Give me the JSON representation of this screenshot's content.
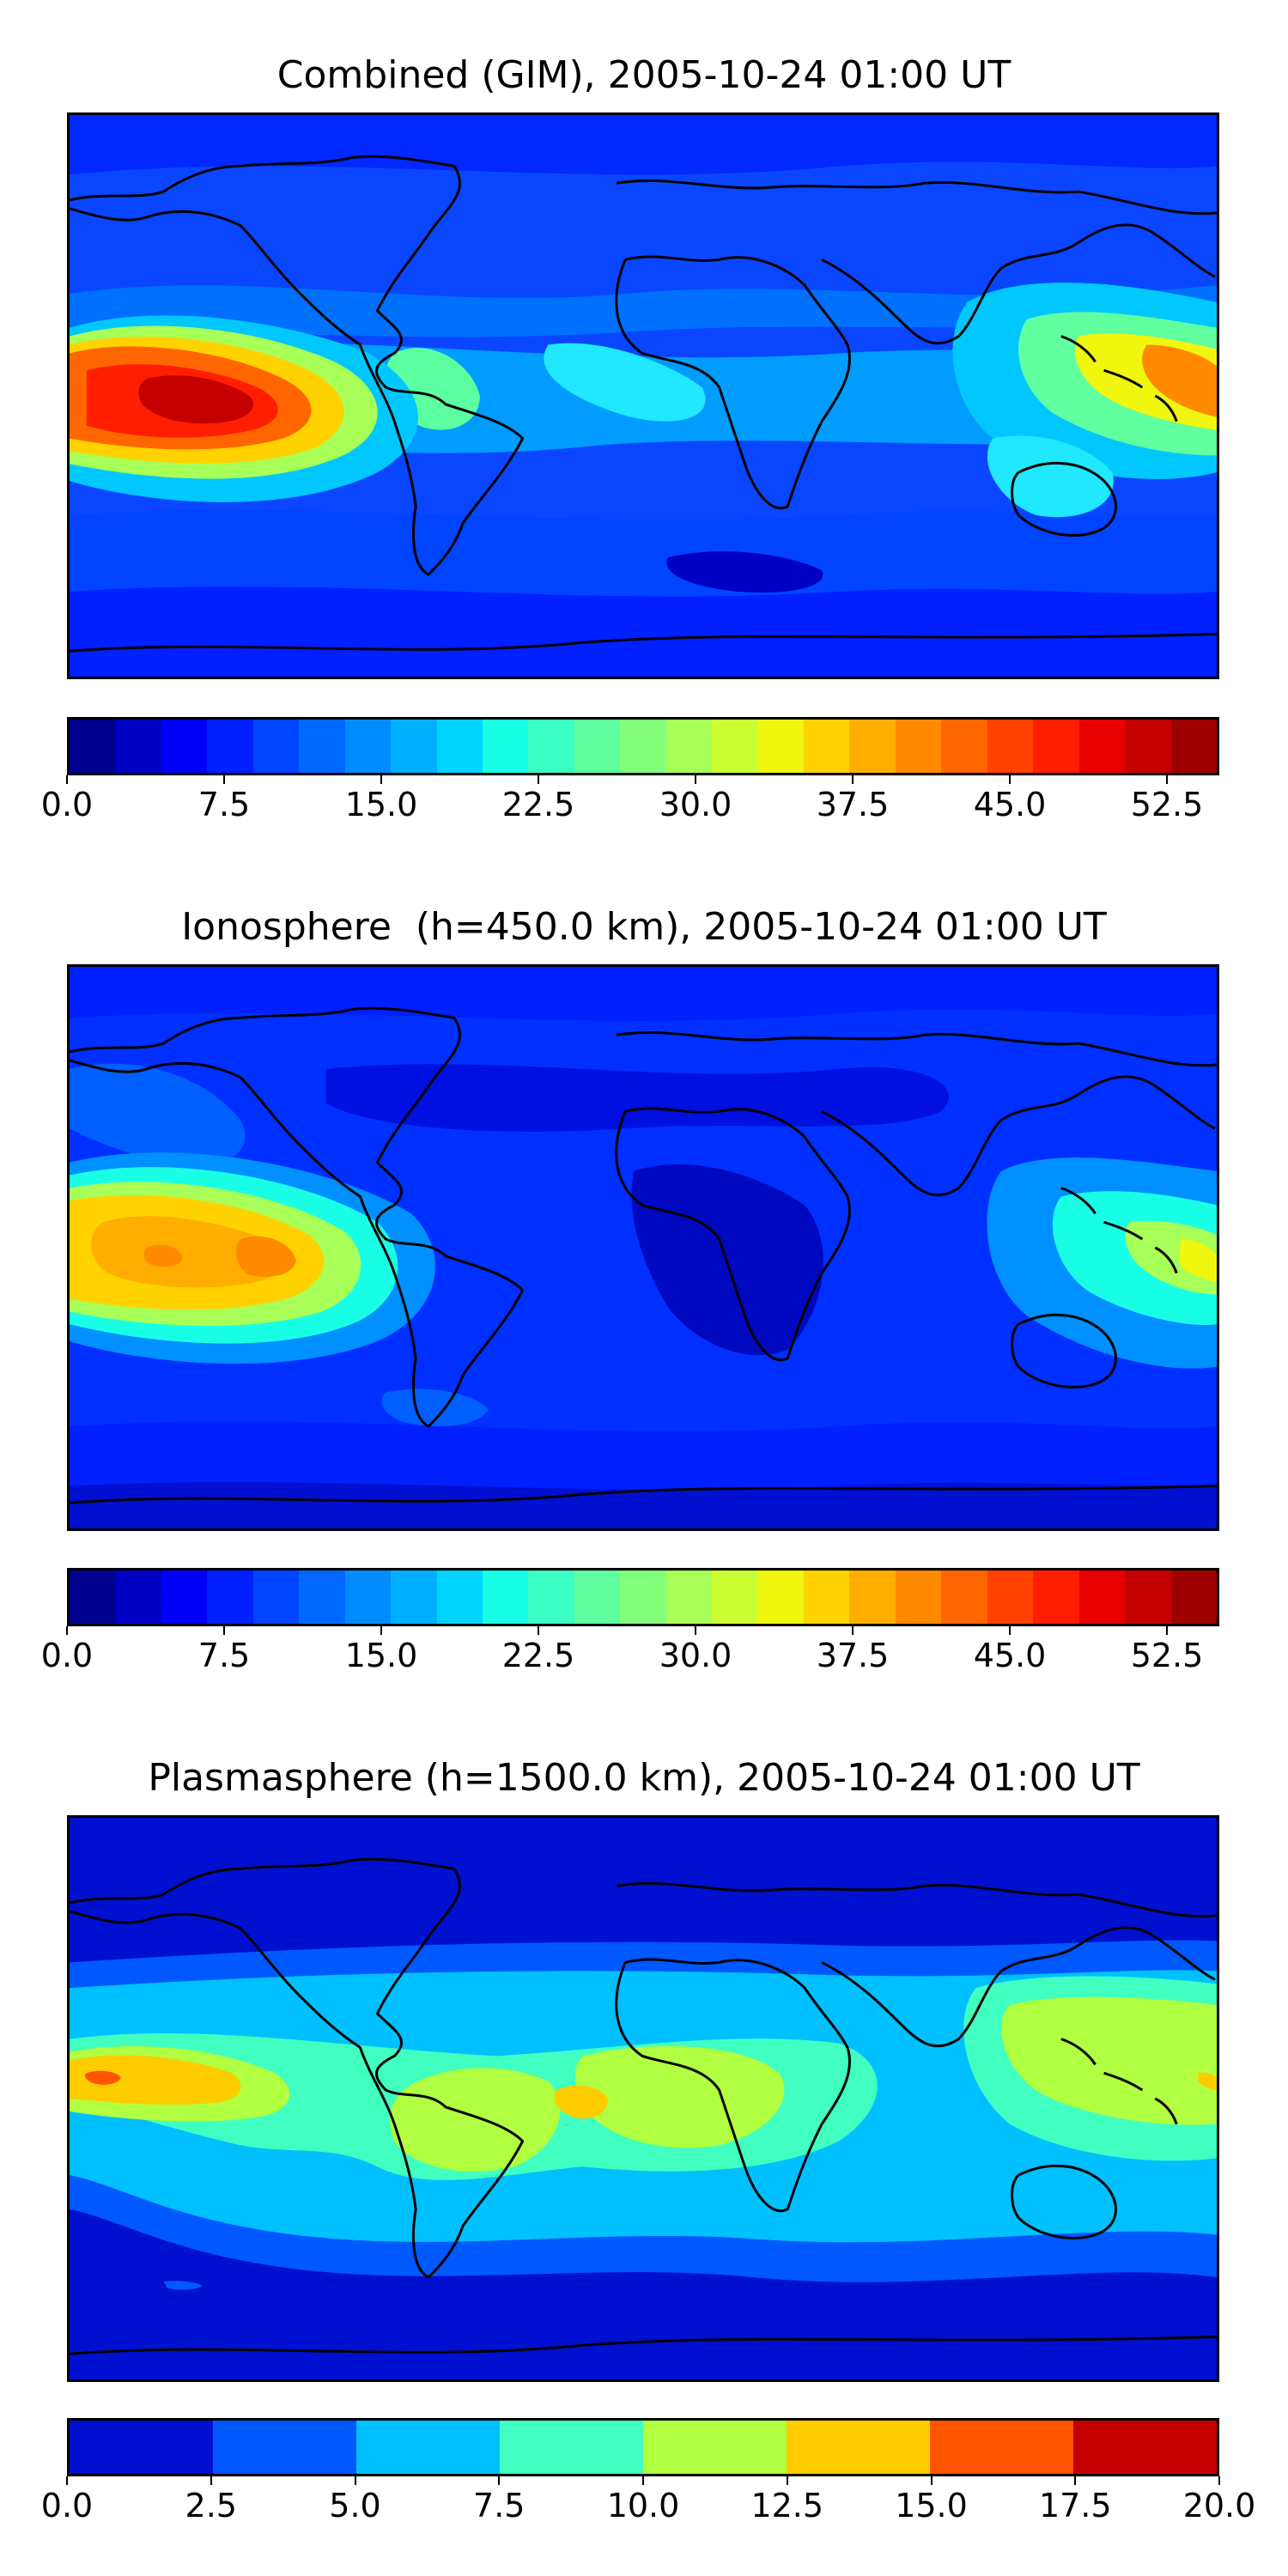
{
  "panels": [
    {
      "title": "Combined (GIM), 2005-10-24 01:00 UT",
      "colorbar": {
        "colors": [
          "#00008f",
          "#0000c4",
          "#0000f6",
          "#0020ff",
          "#0044ff",
          "#0068ff",
          "#008cff",
          "#00b0ff",
          "#00d4ff",
          "#19ffe6",
          "#3cffc3",
          "#60ff9f",
          "#84ff7b",
          "#a8ff57",
          "#ccff33",
          "#f0f60e",
          "#ffd200",
          "#ffae00",
          "#ff8a00",
          "#ff6600",
          "#ff4200",
          "#ff1e00",
          "#e80000",
          "#c40000",
          "#9f0000"
        ],
        "ticks": [
          "0.0",
          "7.5",
          "15.0",
          "22.5",
          "30.0",
          "37.5",
          "45.0",
          "52.5"
        ],
        "tick_values": [
          0,
          7.5,
          15,
          22.5,
          30,
          37.5,
          45,
          52.5
        ],
        "range": [
          0,
          55
        ]
      }
    },
    {
      "title": "Ionosphere  (h=450.0 km), 2005-10-24 01:00 UT",
      "colorbar": {
        "colors": [
          "#00008f",
          "#0000c4",
          "#0000f6",
          "#0020ff",
          "#0044ff",
          "#0068ff",
          "#008cff",
          "#00b0ff",
          "#00d4ff",
          "#19ffe6",
          "#3cffc3",
          "#60ff9f",
          "#84ff7b",
          "#a8ff57",
          "#ccff33",
          "#f0f60e",
          "#ffd200",
          "#ffae00",
          "#ff8a00",
          "#ff6600",
          "#ff4200",
          "#ff1e00",
          "#e80000",
          "#c40000",
          "#9f0000"
        ],
        "ticks": [
          "0.0",
          "7.5",
          "15.0",
          "22.5",
          "30.0",
          "37.5",
          "45.0",
          "52.5"
        ],
        "tick_values": [
          0,
          7.5,
          15,
          22.5,
          30,
          37.5,
          45,
          52.5
        ],
        "range": [
          0,
          55
        ]
      }
    },
    {
      "title": "Plasmasphere (h=1500.0 km), 2005-10-24 01:00 UT",
      "colorbar": {
        "colors": [
          "#0010d0",
          "#0058ff",
          "#00c0ff",
          "#40ffc0",
          "#b0ff40",
          "#ffcc00",
          "#ff5500",
          "#c40000"
        ],
        "ticks": [
          "0.0",
          "2.5",
          "5.0",
          "7.5",
          "10.0",
          "12.5",
          "15.0",
          "17.5",
          "20.0"
        ],
        "tick_values": [
          0,
          2.5,
          5,
          7.5,
          10,
          12.5,
          15,
          17.5,
          20
        ],
        "range": [
          0,
          20
        ]
      }
    }
  ]
}
